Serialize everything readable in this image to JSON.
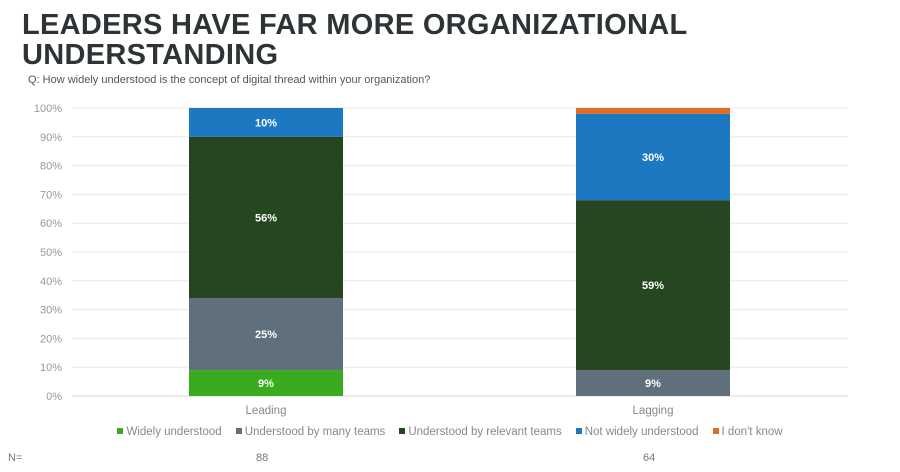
{
  "chart_data": {
    "type": "bar",
    "stacked": true,
    "title": "LEADERS HAVE FAR MORE ORGANIZATIONAL UNDERSTANDING",
    "subtitle": "Q: How widely understood is the concept of digital thread within your organization?",
    "categories": [
      "Leading",
      "Lagging"
    ],
    "ylim": [
      0,
      100
    ],
    "yticks": [
      "0%",
      "10%",
      "20%",
      "30%",
      "40%",
      "50%",
      "60%",
      "70%",
      "80%",
      "90%",
      "100%"
    ],
    "grid": true,
    "legend_position": "bottom",
    "series": [
      {
        "name": "Widely understood",
        "color": "#3aaa1e",
        "values": [
          9,
          0
        ]
      },
      {
        "name": "Understood by many teams",
        "color": "#5f6f7b",
        "values": [
          25,
          9
        ]
      },
      {
        "name": "Understood by relevant teams",
        "color": "#254620",
        "values": [
          56,
          59
        ]
      },
      {
        "name": "Not widely understood",
        "color": "#1c78c0",
        "values": [
          10,
          30
        ]
      },
      {
        "name": "I don't know",
        "color": "#e06c20",
        "values": [
          0,
          2
        ]
      }
    ],
    "n_label": "N=",
    "n_values": [
      "88",
      "64"
    ]
  }
}
